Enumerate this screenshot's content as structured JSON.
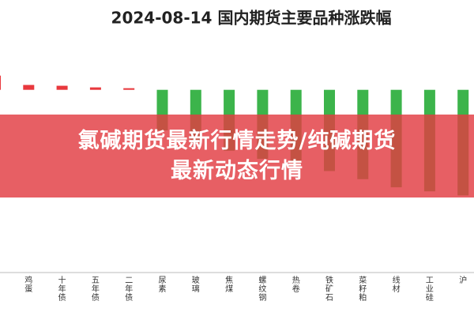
{
  "chart_data": {
    "type": "bar",
    "title": "2024-08-14 国内期货主要品种涨跌幅",
    "categories": [
      null,
      "鸡蛋",
      "十年债",
      "五年债",
      "二年债",
      "尿素",
      "玻璃",
      "焦煤",
      "螺纹钢",
      "热卷",
      "铁矿石",
      "菜籽粕",
      "线材",
      "工业硅",
      "沪"
    ],
    "values": [
      0.35,
      0.12,
      0.1,
      0.06,
      0.04,
      -1.0,
      -1.3,
      -1.5,
      -1.7,
      -1.8,
      -2.0,
      -2.2,
      -2.4,
      -2.5,
      -2.6
    ],
    "colors": {
      "up": "#e8383d",
      "down": "#3cb44b"
    },
    "ylim": [
      -4.5,
      0.5
    ],
    "banner": [
      "氯碱期货最新行情走势/纯碱期货",
      "最新动态行情"
    ]
  }
}
